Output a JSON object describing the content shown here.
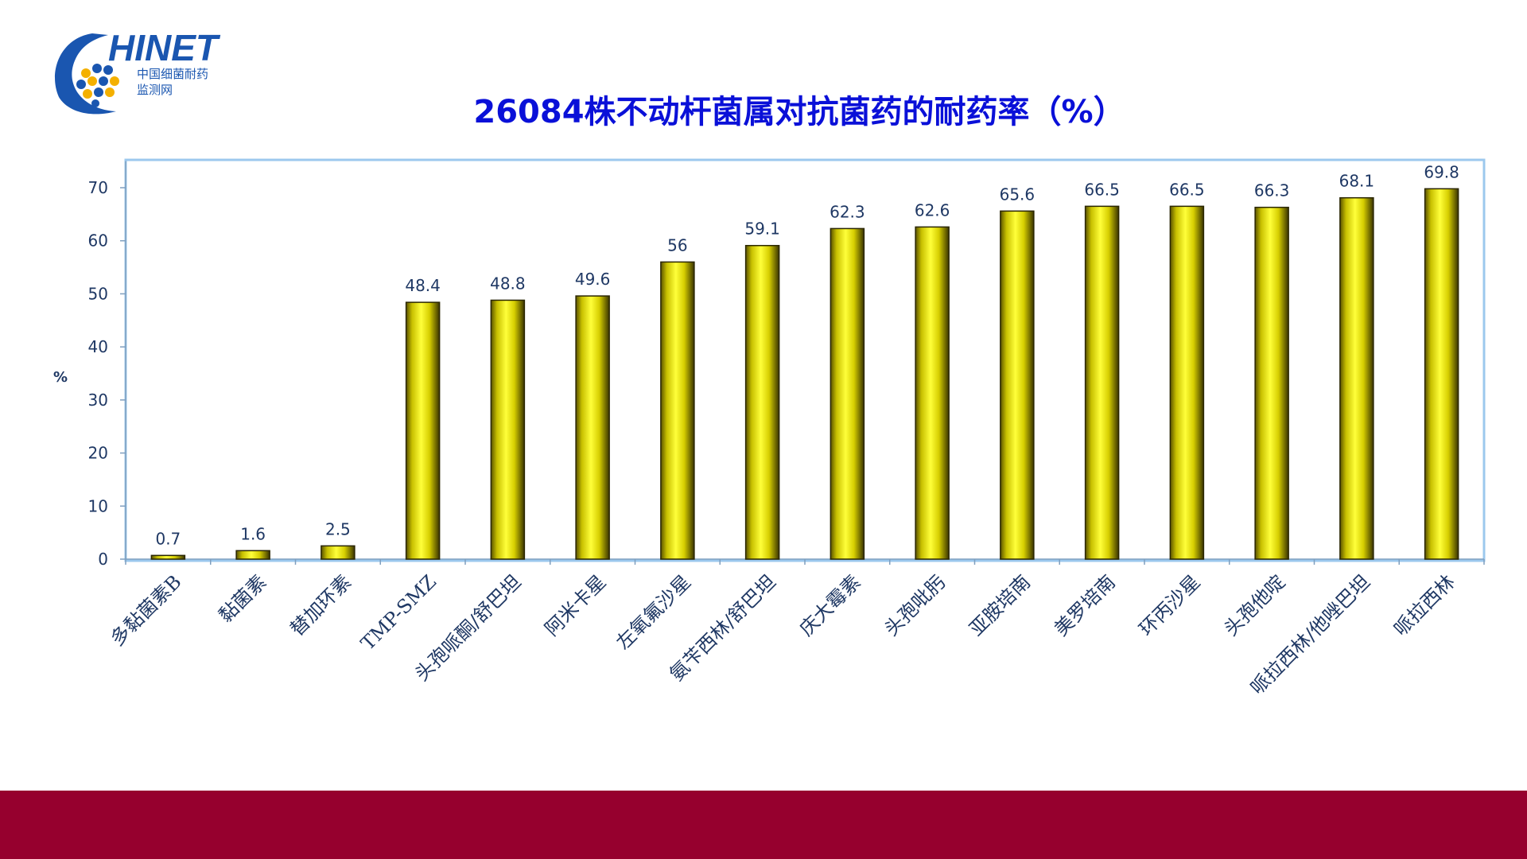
{
  "logo": {
    "name": "HINET",
    "subtitle_line1": "中国细菌耐药",
    "subtitle_line2": "监测网"
  },
  "colors": {
    "title": "#0a10d8",
    "bar": "#e8e000",
    "plot_border": "#9cc8ee",
    "footer": "#96002e",
    "label": "#1f3864"
  },
  "chart_data": {
    "type": "bar",
    "title": "26084株不动杆菌属对抗菌药的耐药率（%）",
    "ylabel": "%",
    "ylim": [
      0,
      75
    ],
    "yticks": [
      0,
      10,
      20,
      30,
      40,
      50,
      60,
      70
    ],
    "categories": [
      "多黏菌素B",
      "黏菌素",
      "替加环素",
      "TMP-SMZ",
      "头孢哌酮/舒巴坦",
      "阿米卡星",
      "左氧氟沙星",
      "氨苄西林/舒巴坦",
      "庆大霉素",
      "头孢吡肟",
      "亚胺培南",
      "美罗培南",
      "环丙沙星",
      "头孢他啶",
      "哌拉西林/他唑巴坦",
      "哌拉西林"
    ],
    "values": [
      0.7,
      1.6,
      2.5,
      48.4,
      48.8,
      49.6,
      56,
      59.1,
      62.3,
      62.6,
      65.6,
      66.5,
      66.5,
      66.3,
      68.1,
      69.8
    ],
    "value_labels": [
      "0.7",
      "1.6",
      "2.5",
      "48.4",
      "48.8",
      "49.6",
      "56",
      "59.1",
      "62.3",
      "62.6",
      "65.6",
      "66.5",
      "66.5",
      "66.3",
      "68.1",
      "69.8"
    ]
  }
}
